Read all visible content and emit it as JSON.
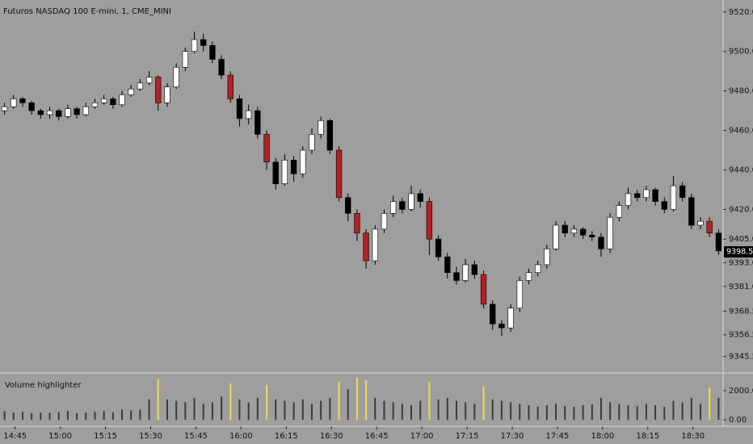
{
  "chart_data": {
    "type": "candlestick",
    "title": "Futuros NASDAQ 100 E-mini, 1, CME_MINI",
    "xlim": [
      0,
      80
    ],
    "xticks": [
      {
        "value": 1.67,
        "label": "14:45"
      },
      {
        "value": 6.67,
        "label": "15:00"
      },
      {
        "value": 11.67,
        "label": "15:15"
      },
      {
        "value": 16.67,
        "label": "15:30"
      },
      {
        "value": 21.67,
        "label": "15:45"
      },
      {
        "value": 26.67,
        "label": "16:00"
      },
      {
        "value": 31.67,
        "label": "16:15"
      },
      {
        "value": 36.67,
        "label": "16:30"
      },
      {
        "value": 41.67,
        "label": "16:45"
      },
      {
        "value": 46.67,
        "label": "17:00"
      },
      {
        "value": 51.67,
        "label": "17:15"
      },
      {
        "value": 56.67,
        "label": "17:30"
      },
      {
        "value": 61.67,
        "label": "17:45"
      },
      {
        "value": 66.67,
        "label": "18:00"
      },
      {
        "value": 71.67,
        "label": "18:15"
      },
      {
        "value": 76.67,
        "label": "18:30"
      }
    ],
    "ylim": [
      9338,
      9524
    ],
    "yticks": [
      {
        "value": 9520,
        "label": "9520.00"
      },
      {
        "value": 9500,
        "label": "9500.00"
      },
      {
        "value": 9480,
        "label": "9480.00"
      },
      {
        "value": 9460,
        "label": "9460.00"
      },
      {
        "value": 9440,
        "label": "9440.00"
      },
      {
        "value": 9420,
        "label": "9420.00"
      },
      {
        "value": 9405,
        "label": "9405.00"
      },
      {
        "value": 9393,
        "label": "9393.00"
      },
      {
        "value": 9381,
        "label": "9381.00"
      },
      {
        "value": 9368.5,
        "label": "9368.50"
      },
      {
        "value": 9356.5,
        "label": "9356.50"
      },
      {
        "value": 9345.5,
        "label": "9345.50"
      }
    ],
    "last_price": {
      "value": 9398.5,
      "label": "9398.50"
    },
    "up_color": "#ffffff",
    "down_color": "#000000",
    "highlight_color": "#b22222",
    "open": [
      9470,
      9472,
      9476,
      9474,
      9470,
      9468,
      9470,
      9467,
      9471,
      9468,
      9472,
      9474,
      9476,
      9473,
      9478,
      9481,
      9484,
      9487,
      9474,
      9482,
      9492,
      9500,
      9506,
      9503,
      9496,
      9488,
      9476,
      9466,
      9470,
      9458,
      9444,
      9433,
      9445,
      9438,
      9450,
      9458,
      9465,
      9450,
      9426,
      9418,
      9408,
      9394,
      9410,
      9418,
      9424,
      9420,
      9428,
      9424,
      9405,
      9396,
      9388,
      9384,
      9392,
      9387,
      9372,
      9362,
      9360,
      9370,
      9384,
      9388,
      9392,
      9400,
      9412,
      9408,
      9410,
      9407,
      9406,
      9400,
      9416,
      9422,
      9428,
      9426,
      9430,
      9424,
      9420,
      9432,
      9426,
      9412,
      9414,
      9408
    ],
    "high": [
      9474,
      9478,
      9477,
      9475,
      9471,
      9472,
      9471,
      9473,
      9472,
      9474,
      9476,
      9478,
      9477,
      9480,
      9483,
      9486,
      9490,
      9488,
      9484,
      9494,
      9502,
      9510,
      9509,
      9505,
      9498,
      9490,
      9478,
      9473,
      9472,
      9460,
      9446,
      9448,
      9447,
      9452,
      9461,
      9467,
      9466,
      9452,
      9428,
      9420,
      9410,
      9412,
      9420,
      9427,
      9426,
      9432,
      9430,
      9426,
      9407,
      9398,
      9391,
      9395,
      9394,
      9389,
      9374,
      9364,
      9372,
      9386,
      9390,
      9394,
      9402,
      9414,
      9414,
      9412,
      9411,
      9409,
      9408,
      9418,
      9424,
      9431,
      9430,
      9432,
      9431,
      9426,
      9437,
      9434,
      9428,
      9416,
      9416,
      9410
    ],
    "low": [
      9468,
      9471,
      9472,
      9468,
      9466,
      9466,
      9465,
      9466,
      9466,
      9467,
      9471,
      9473,
      9471,
      9472,
      9477,
      9480,
      9483,
      9470,
      9472,
      9481,
      9490,
      9499,
      9500,
      9494,
      9486,
      9474,
      9462,
      9463,
      9456,
      9440,
      9430,
      9432,
      9434,
      9436,
      9448,
      9456,
      9448,
      9424,
      9414,
      9404,
      9390,
      9392,
      9408,
      9416,
      9418,
      9419,
      9421,
      9397,
      9394,
      9385,
      9382,
      9383,
      9385,
      9370,
      9359,
      9356,
      9358,
      9368,
      9382,
      9386,
      9390,
      9399,
      9406,
      9406,
      9405,
      9404,
      9396,
      9398,
      9414,
      9420,
      9424,
      9424,
      9422,
      9418,
      9419,
      9424,
      9410,
      9410,
      9406,
      9397
    ],
    "close": [
      9472,
      9476,
      9474,
      9470,
      9468,
      9470,
      9467,
      9471,
      9468,
      9472,
      9474,
      9476,
      9473,
      9478,
      9481,
      9484,
      9487,
      9474,
      9482,
      9492,
      9500,
      9506,
      9503,
      9496,
      9488,
      9476,
      9466,
      9470,
      9458,
      9444,
      9433,
      9445,
      9438,
      9450,
      9458,
      9465,
      9450,
      9426,
      9418,
      9408,
      9394,
      9410,
      9418,
      9424,
      9420,
      9428,
      9424,
      9405,
      9396,
      9388,
      9384,
      9392,
      9387,
      9372,
      9362,
      9360,
      9370,
      9384,
      9388,
      9392,
      9400,
      9412,
      9408,
      9410,
      9407,
      9406,
      9400,
      9416,
      9422,
      9428,
      9426,
      9430,
      9424,
      9420,
      9432,
      9426,
      9412,
      9414,
      9408,
      9399
    ],
    "highlighted": [
      false,
      false,
      false,
      false,
      false,
      false,
      false,
      false,
      false,
      false,
      false,
      false,
      false,
      false,
      false,
      false,
      false,
      true,
      false,
      false,
      false,
      false,
      false,
      false,
      false,
      true,
      false,
      false,
      false,
      true,
      false,
      false,
      false,
      false,
      false,
      false,
      false,
      true,
      false,
      true,
      true,
      false,
      false,
      false,
      false,
      false,
      false,
      true,
      false,
      false,
      false,
      false,
      false,
      true,
      false,
      false,
      false,
      false,
      false,
      false,
      false,
      false,
      false,
      false,
      false,
      false,
      false,
      false,
      false,
      false,
      false,
      false,
      false,
      false,
      false,
      false,
      false,
      false,
      true,
      false
    ],
    "volume": {
      "title": "Volume highlighter",
      "ylim": [
        0,
        3050
      ],
      "yticks": [
        {
          "value": 2000,
          "label": "2000.00"
        },
        {
          "value": 0,
          "label": "0.00"
        }
      ],
      "color": "#3a3a3a",
      "highlight_color": "#f0dc50",
      "values": [
        600,
        500,
        550,
        450,
        500,
        480,
        520,
        600,
        450,
        500,
        550,
        600,
        520,
        700,
        650,
        700,
        1400,
        2800,
        1400,
        1300,
        1200,
        1500,
        1100,
        1200,
        1600,
        2500,
        1400,
        1200,
        1500,
        2400,
        1400,
        1300,
        1200,
        1400,
        1100,
        1300,
        1500,
        2600,
        2100,
        2900,
        2700,
        1500,
        1300,
        1200,
        1100,
        1000,
        1300,
        2600,
        1400,
        1500,
        1300,
        1200,
        1100,
        2300,
        1400,
        1300,
        1200,
        1100,
        1000,
        900,
        1000,
        1100,
        950,
        900,
        1000,
        1050,
        1500,
        1200,
        1100,
        1000,
        950,
        1100,
        1000,
        900,
        1300,
        1200,
        1500,
        1100,
        2200,
        1500
      ]
    }
  }
}
